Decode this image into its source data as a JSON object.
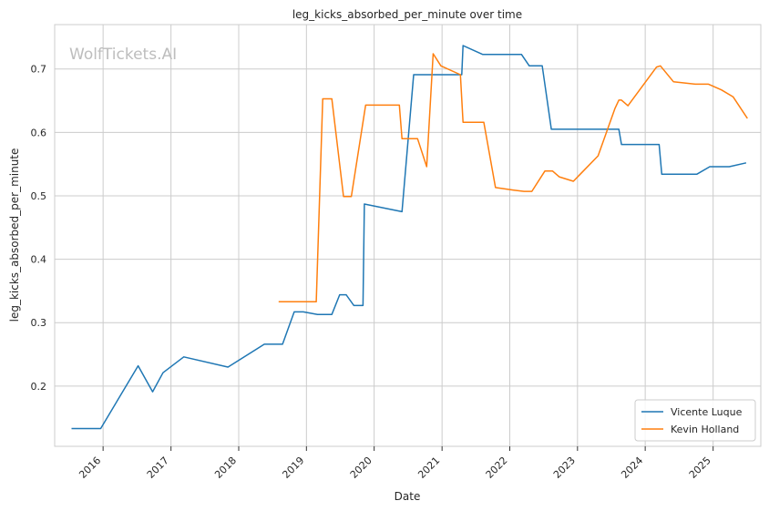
{
  "watermark": "WolfTickets.AI",
  "chart_data": {
    "type": "line",
    "title": "leg_kicks_absorbed_per_minute over time",
    "xlabel": "Date",
    "ylabel": "leg_kicks_absorbed_per_minute",
    "xlim": [
      "2015-04-15",
      "2025-09-15"
    ],
    "ylim": [
      0.105,
      0.77
    ],
    "x_ticks": [
      "2016",
      "2017",
      "2018",
      "2019",
      "2020",
      "2021",
      "2022",
      "2023",
      "2024",
      "2025"
    ],
    "y_ticks": [
      0.2,
      0.3,
      0.4,
      0.5,
      0.6,
      0.7
    ],
    "grid": true,
    "legend_position": "bottom-right",
    "series": [
      {
        "name": "Vicente Luque",
        "color": "#1f77b4",
        "points": [
          [
            "2015-07-15",
            0.133
          ],
          [
            "2015-12-19",
            0.133
          ],
          [
            "2016-07-08",
            0.232
          ],
          [
            "2016-09-24",
            0.191
          ],
          [
            "2016-11-19",
            0.221
          ],
          [
            "2017-03-11",
            0.246
          ],
          [
            "2017-11-04",
            0.23
          ],
          [
            "2018-05-19",
            0.266
          ],
          [
            "2018-08-25",
            0.266
          ],
          [
            "2018-10-27",
            0.317
          ],
          [
            "2018-12-15",
            0.317
          ],
          [
            "2019-03-02",
            0.313
          ],
          [
            "2019-05-18",
            0.313
          ],
          [
            "2019-06-29",
            0.344
          ],
          [
            "2019-08-03",
            0.344
          ],
          [
            "2019-09-14",
            0.327
          ],
          [
            "2019-11-02",
            0.327
          ],
          [
            "2019-11-09",
            0.487
          ],
          [
            "2020-05-30",
            0.475
          ],
          [
            "2020-08-01",
            0.691
          ],
          [
            "2021-01-01",
            0.691
          ],
          [
            "2021-04-17",
            0.691
          ],
          [
            "2021-04-24",
            0.737
          ],
          [
            "2021-08-07",
            0.723
          ],
          [
            "2022-03-05",
            0.723
          ],
          [
            "2022-04-16",
            0.705
          ],
          [
            "2022-06-25",
            0.705
          ],
          [
            "2022-08-13",
            0.605
          ],
          [
            "2023-08-12",
            0.605
          ],
          [
            "2023-08-26",
            0.581
          ],
          [
            "2024-03-16",
            0.581
          ],
          [
            "2024-03-30",
            0.534
          ],
          [
            "2024-10-05",
            0.534
          ],
          [
            "2024-12-14",
            0.546
          ],
          [
            "2025-03-29",
            0.546
          ],
          [
            "2025-06-28",
            0.552
          ]
        ]
      },
      {
        "name": "Kevin Holland",
        "color": "#ff7f0e",
        "points": [
          [
            "2018-08-04",
            0.333
          ],
          [
            "2019-02-23",
            0.333
          ],
          [
            "2019-03-30",
            0.653
          ],
          [
            "2019-05-18",
            0.653
          ],
          [
            "2019-07-20",
            0.499
          ],
          [
            "2019-08-31",
            0.499
          ],
          [
            "2019-11-16",
            0.643
          ],
          [
            "2020-05-16",
            0.643
          ],
          [
            "2020-05-30",
            0.59
          ],
          [
            "2020-08-22",
            0.59
          ],
          [
            "2020-10-10",
            0.546
          ],
          [
            "2020-11-14",
            0.724
          ],
          [
            "2020-12-26",
            0.705
          ],
          [
            "2021-04-10",
            0.691
          ],
          [
            "2021-04-24",
            0.616
          ],
          [
            "2021-08-14",
            0.616
          ],
          [
            "2021-10-16",
            0.513
          ],
          [
            "2022-01-22",
            0.509
          ],
          [
            "2022-03-19",
            0.507
          ],
          [
            "2022-04-30",
            0.507
          ],
          [
            "2022-07-09",
            0.539
          ],
          [
            "2022-08-20",
            0.539
          ],
          [
            "2022-09-24",
            0.53
          ],
          [
            "2022-12-10",
            0.523
          ],
          [
            "2023-04-22",
            0.563
          ],
          [
            "2023-07-22",
            0.638
          ],
          [
            "2023-08-12",
            0.651
          ],
          [
            "2023-08-26",
            0.651
          ],
          [
            "2023-09-30",
            0.642
          ],
          [
            "2024-03-02",
            0.703
          ],
          [
            "2024-03-23",
            0.705
          ],
          [
            "2024-06-01",
            0.68
          ],
          [
            "2024-09-28",
            0.676
          ],
          [
            "2024-12-07",
            0.676
          ],
          [
            "2025-02-15",
            0.667
          ],
          [
            "2025-04-19",
            0.656
          ],
          [
            "2025-07-05",
            0.622
          ]
        ]
      }
    ]
  }
}
